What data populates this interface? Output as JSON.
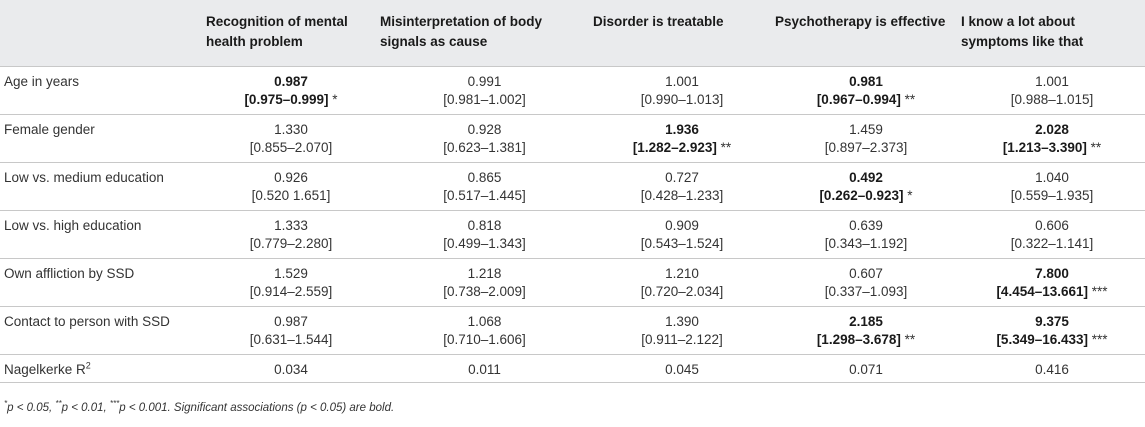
{
  "table": {
    "columns": [
      "",
      "Recognition of mental health problem",
      "Misinterpretation of body signals as cause",
      "Disorder is treatable",
      "Psychotherapy is effective",
      "I know a lot about symptoms like that"
    ],
    "rows": [
      {
        "label": "Age in years",
        "cells": [
          {
            "or": "0.987",
            "ci": "[0.975–0.999]",
            "stars": "*",
            "sig": true
          },
          {
            "or": "0.991",
            "ci": "[0.981–1.002]",
            "stars": "",
            "sig": false
          },
          {
            "or": "1.001",
            "ci": "[0.990–1.013]",
            "stars": "",
            "sig": false
          },
          {
            "or": "0.981",
            "ci": "[0.967–0.994]",
            "stars": "**",
            "sig": true
          },
          {
            "or": "1.001",
            "ci": "[0.988–1.015]",
            "stars": "",
            "sig": false
          }
        ]
      },
      {
        "label": "Female gender",
        "cells": [
          {
            "or": "1.330",
            "ci": "[0.855–2.070]",
            "stars": "",
            "sig": false
          },
          {
            "or": "0.928",
            "ci": "[0.623–1.381]",
            "stars": "",
            "sig": false
          },
          {
            "or": "1.936",
            "ci": "[1.282–2.923]",
            "stars": "**",
            "sig": true
          },
          {
            "or": "1.459",
            "ci": "[0.897–2.373]",
            "stars": "",
            "sig": false
          },
          {
            "or": "2.028",
            "ci": "[1.213–3.390]",
            "stars": "**",
            "sig": true
          }
        ]
      },
      {
        "label": "Low vs. medium education",
        "cells": [
          {
            "or": "0.926",
            "ci": "[0.520 1.651]",
            "stars": "",
            "sig": false
          },
          {
            "or": "0.865",
            "ci": "[0.517–1.445]",
            "stars": "",
            "sig": false
          },
          {
            "or": "0.727",
            "ci": "[0.428–1.233]",
            "stars": "",
            "sig": false
          },
          {
            "or": "0.492",
            "ci": "[0.262–0.923]",
            "stars": "*",
            "sig": true
          },
          {
            "or": "1.040",
            "ci": "[0.559–1.935]",
            "stars": "",
            "sig": false
          }
        ]
      },
      {
        "label": "Low vs. high education",
        "cells": [
          {
            "or": "1.333",
            "ci": "[0.779–2.280]",
            "stars": "",
            "sig": false
          },
          {
            "or": "0.818",
            "ci": "[0.499–1.343]",
            "stars": "",
            "sig": false
          },
          {
            "or": "0.909",
            "ci": "[0.543–1.524]",
            "stars": "",
            "sig": false
          },
          {
            "or": "0.639",
            "ci": "[0.343–1.192]",
            "stars": "",
            "sig": false
          },
          {
            "or": "0.606",
            "ci": "[0.322–1.141]",
            "stars": "",
            "sig": false
          }
        ]
      },
      {
        "label": "Own affliction by SSD",
        "cells": [
          {
            "or": "1.529",
            "ci": "[0.914–2.559]",
            "stars": "",
            "sig": false
          },
          {
            "or": "1.218",
            "ci": "[0.738–2.009]",
            "stars": "",
            "sig": false
          },
          {
            "or": "1.210",
            "ci": "[0.720–2.034]",
            "stars": "",
            "sig": false
          },
          {
            "or": "0.607",
            "ci": "[0.337–1.093]",
            "stars": "",
            "sig": false
          },
          {
            "or": "7.800",
            "ci": "[4.454–13.661]",
            "stars": "***",
            "sig": true
          }
        ]
      },
      {
        "label": "Contact to person with SSD",
        "cells": [
          {
            "or": "0.987",
            "ci": "[0.631–1.544]",
            "stars": "",
            "sig": false
          },
          {
            "or": "1.068",
            "ci": "[0.710–1.606]",
            "stars": "",
            "sig": false
          },
          {
            "or": "1.390",
            "ci": "[0.911–2.122]",
            "stars": "",
            "sig": false
          },
          {
            "or": "2.185",
            "ci": "[1.298–3.678]",
            "stars": "**",
            "sig": true
          },
          {
            "or": "9.375",
            "ci": "[5.349–16.433]",
            "stars": "***",
            "sig": true
          }
        ]
      }
    ],
    "nagelkerke": {
      "label": "Nagelkerke R",
      "sup": "2",
      "values": [
        "0.034",
        "0.011",
        "0.045",
        "0.071",
        "0.416"
      ]
    }
  },
  "footnote": {
    "s1": "*",
    "t1": "p < 0.05, ",
    "s2": "**",
    "t2": "p < 0.01, ",
    "s3": "***",
    "t3": "p < 0.001. Significant associations (p < 0.05) are bold."
  }
}
